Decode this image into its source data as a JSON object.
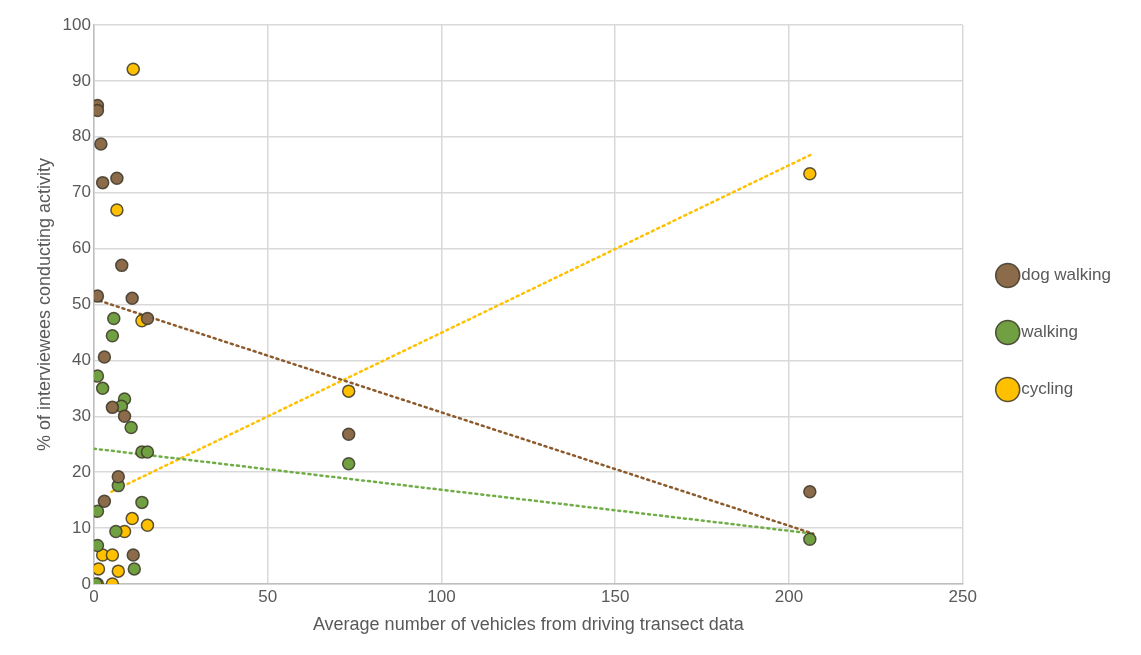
{
  "chart_data": {
    "type": "scatter",
    "xlabel": "Average number of vehicles from driving transect data",
    "ylabel": "% of interviewees conducting activity",
    "xlim": [
      0,
      250
    ],
    "xticks": [
      0,
      50,
      100,
      150,
      200,
      250
    ],
    "ylim": [
      0,
      100
    ],
    "yticks": [
      0,
      10,
      20,
      30,
      40,
      50,
      60,
      70,
      80,
      90,
      100
    ],
    "grid": true,
    "legend": "right",
    "marker": "circle",
    "series": [
      {
        "name": "dog walking",
        "color": "#8c6b4a",
        "x": [
          1,
          1,
          2,
          2.5,
          6.6,
          8,
          1,
          11,
          15.4,
          3,
          5.3,
          8.8,
          7,
          3,
          11.3,
          73.3,
          206
        ],
        "values": [
          85.6,
          84.7,
          78.7,
          71.8,
          72.6,
          57,
          51.5,
          51.1,
          47.5,
          40.6,
          31.6,
          30,
          19.2,
          14.8,
          5.2,
          26.8,
          16.5
        ]
      },
      {
        "name": "walking",
        "color": "#70a041",
        "x": [
          5.7,
          5.3,
          1,
          2.5,
          8.8,
          7.9,
          10.7,
          13.8,
          15.4,
          7,
          1,
          2,
          13.8,
          6.3,
          1,
          11.6,
          0.6,
          73.3,
          206
        ],
        "values": [
          47.5,
          44.4,
          37.2,
          35,
          33.1,
          31.8,
          28,
          23.6,
          23.6,
          17.6,
          13,
          null,
          14.6,
          9.4,
          6.9,
          2.7,
          0,
          21.5,
          8
        ]
      },
      {
        "name": "cycling",
        "color": "#ffc000",
        "x": [
          11.3,
          6.6,
          13.8,
          73.3,
          206,
          11,
          15.4,
          8.8,
          2.5,
          5.3,
          1.3,
          7,
          1,
          5.3
        ],
        "values": [
          92.1,
          66.9,
          47.1,
          34.5,
          73.4,
          11.7,
          10.5,
          9.4,
          5.2,
          5.2,
          2.7,
          2.3,
          0,
          0
        ]
      },
      {
        "type": "line",
        "color": "#8c5a2b",
        "line_style": "dotted",
        "marker": "none",
        "x": [
          0,
          207
        ],
        "values": [
          51,
          9
        ]
      },
      {
        "type": "line",
        "color": "#70ad47",
        "line_style": "dotted",
        "marker": "none",
        "x": [
          0,
          207
        ],
        "values": [
          24.2,
          9
        ]
      },
      {
        "type": "line",
        "color": "#ffc000",
        "line_style": "dotted",
        "marker": "none",
        "x": [
          5,
          207
        ],
        "values": [
          16.5,
          77
        ]
      }
    ]
  }
}
